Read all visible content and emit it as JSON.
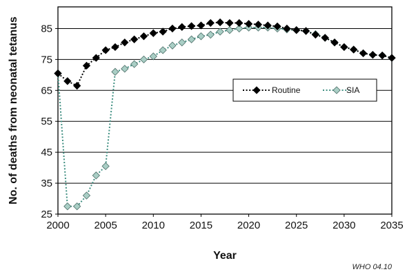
{
  "chart_data": {
    "type": "line",
    "xlabel": "Year",
    "ylabel": "No. of deaths from neonatal tetanus",
    "xlim": [
      2000,
      2035
    ],
    "ylim": [
      25,
      92
    ],
    "xticks": [
      2000,
      2005,
      2010,
      2015,
      2020,
      2025,
      2030,
      2035
    ],
    "yticks": [
      25,
      35,
      45,
      55,
      65,
      75,
      85
    ],
    "grid": "horizontal",
    "legend_position": "right-middle",
    "series": [
      {
        "name": "Routine",
        "color": "#000000",
        "x": [
          2000,
          2001,
          2002,
          2003,
          2004,
          2005,
          2006,
          2007,
          2008,
          2009,
          2010,
          2011,
          2012,
          2013,
          2014,
          2015,
          2016,
          2017,
          2018,
          2019,
          2020,
          2021,
          2022,
          2023,
          2024,
          2025,
          2026,
          2027,
          2028,
          2029,
          2030,
          2031,
          2032,
          2033,
          2034,
          2035
        ],
        "values": [
          70.5,
          68,
          66.5,
          73,
          75.5,
          78,
          79,
          80.5,
          81.5,
          82.5,
          83.5,
          84,
          85,
          85.5,
          85.8,
          86,
          86.8,
          87,
          86.8,
          86.8,
          86.5,
          86.3,
          86,
          85.7,
          85,
          84.5,
          84.2,
          83,
          82,
          80.5,
          79,
          78.2,
          77,
          76.5,
          76.3,
          75.5
        ]
      },
      {
        "name": "SIA",
        "color": "#9DC7BD",
        "x": [
          2000,
          2001,
          2002,
          2003,
          2004,
          2005,
          2006,
          2007,
          2008,
          2009,
          2010,
          2011,
          2012,
          2013,
          2014,
          2015,
          2016,
          2017,
          2018,
          2019,
          2020,
          2021,
          2022,
          2023,
          2024,
          2025,
          2026,
          2027,
          2028,
          2029,
          2030,
          2031,
          2032,
          2033,
          2034,
          2035
        ],
        "values": [
          70.5,
          27.5,
          27.5,
          31,
          37.5,
          40.5,
          71,
          72,
          73.5,
          75,
          76,
          78,
          79.5,
          80.5,
          81.5,
          82.5,
          83,
          84,
          84.5,
          85,
          85.3,
          85.3,
          85.3,
          85,
          84.7,
          84.5,
          84.2,
          83.2,
          82,
          80.5,
          79,
          78.2,
          77,
          76.5,
          76.3,
          75.5
        ]
      }
    ],
    "credit": "WHO 04.10"
  }
}
